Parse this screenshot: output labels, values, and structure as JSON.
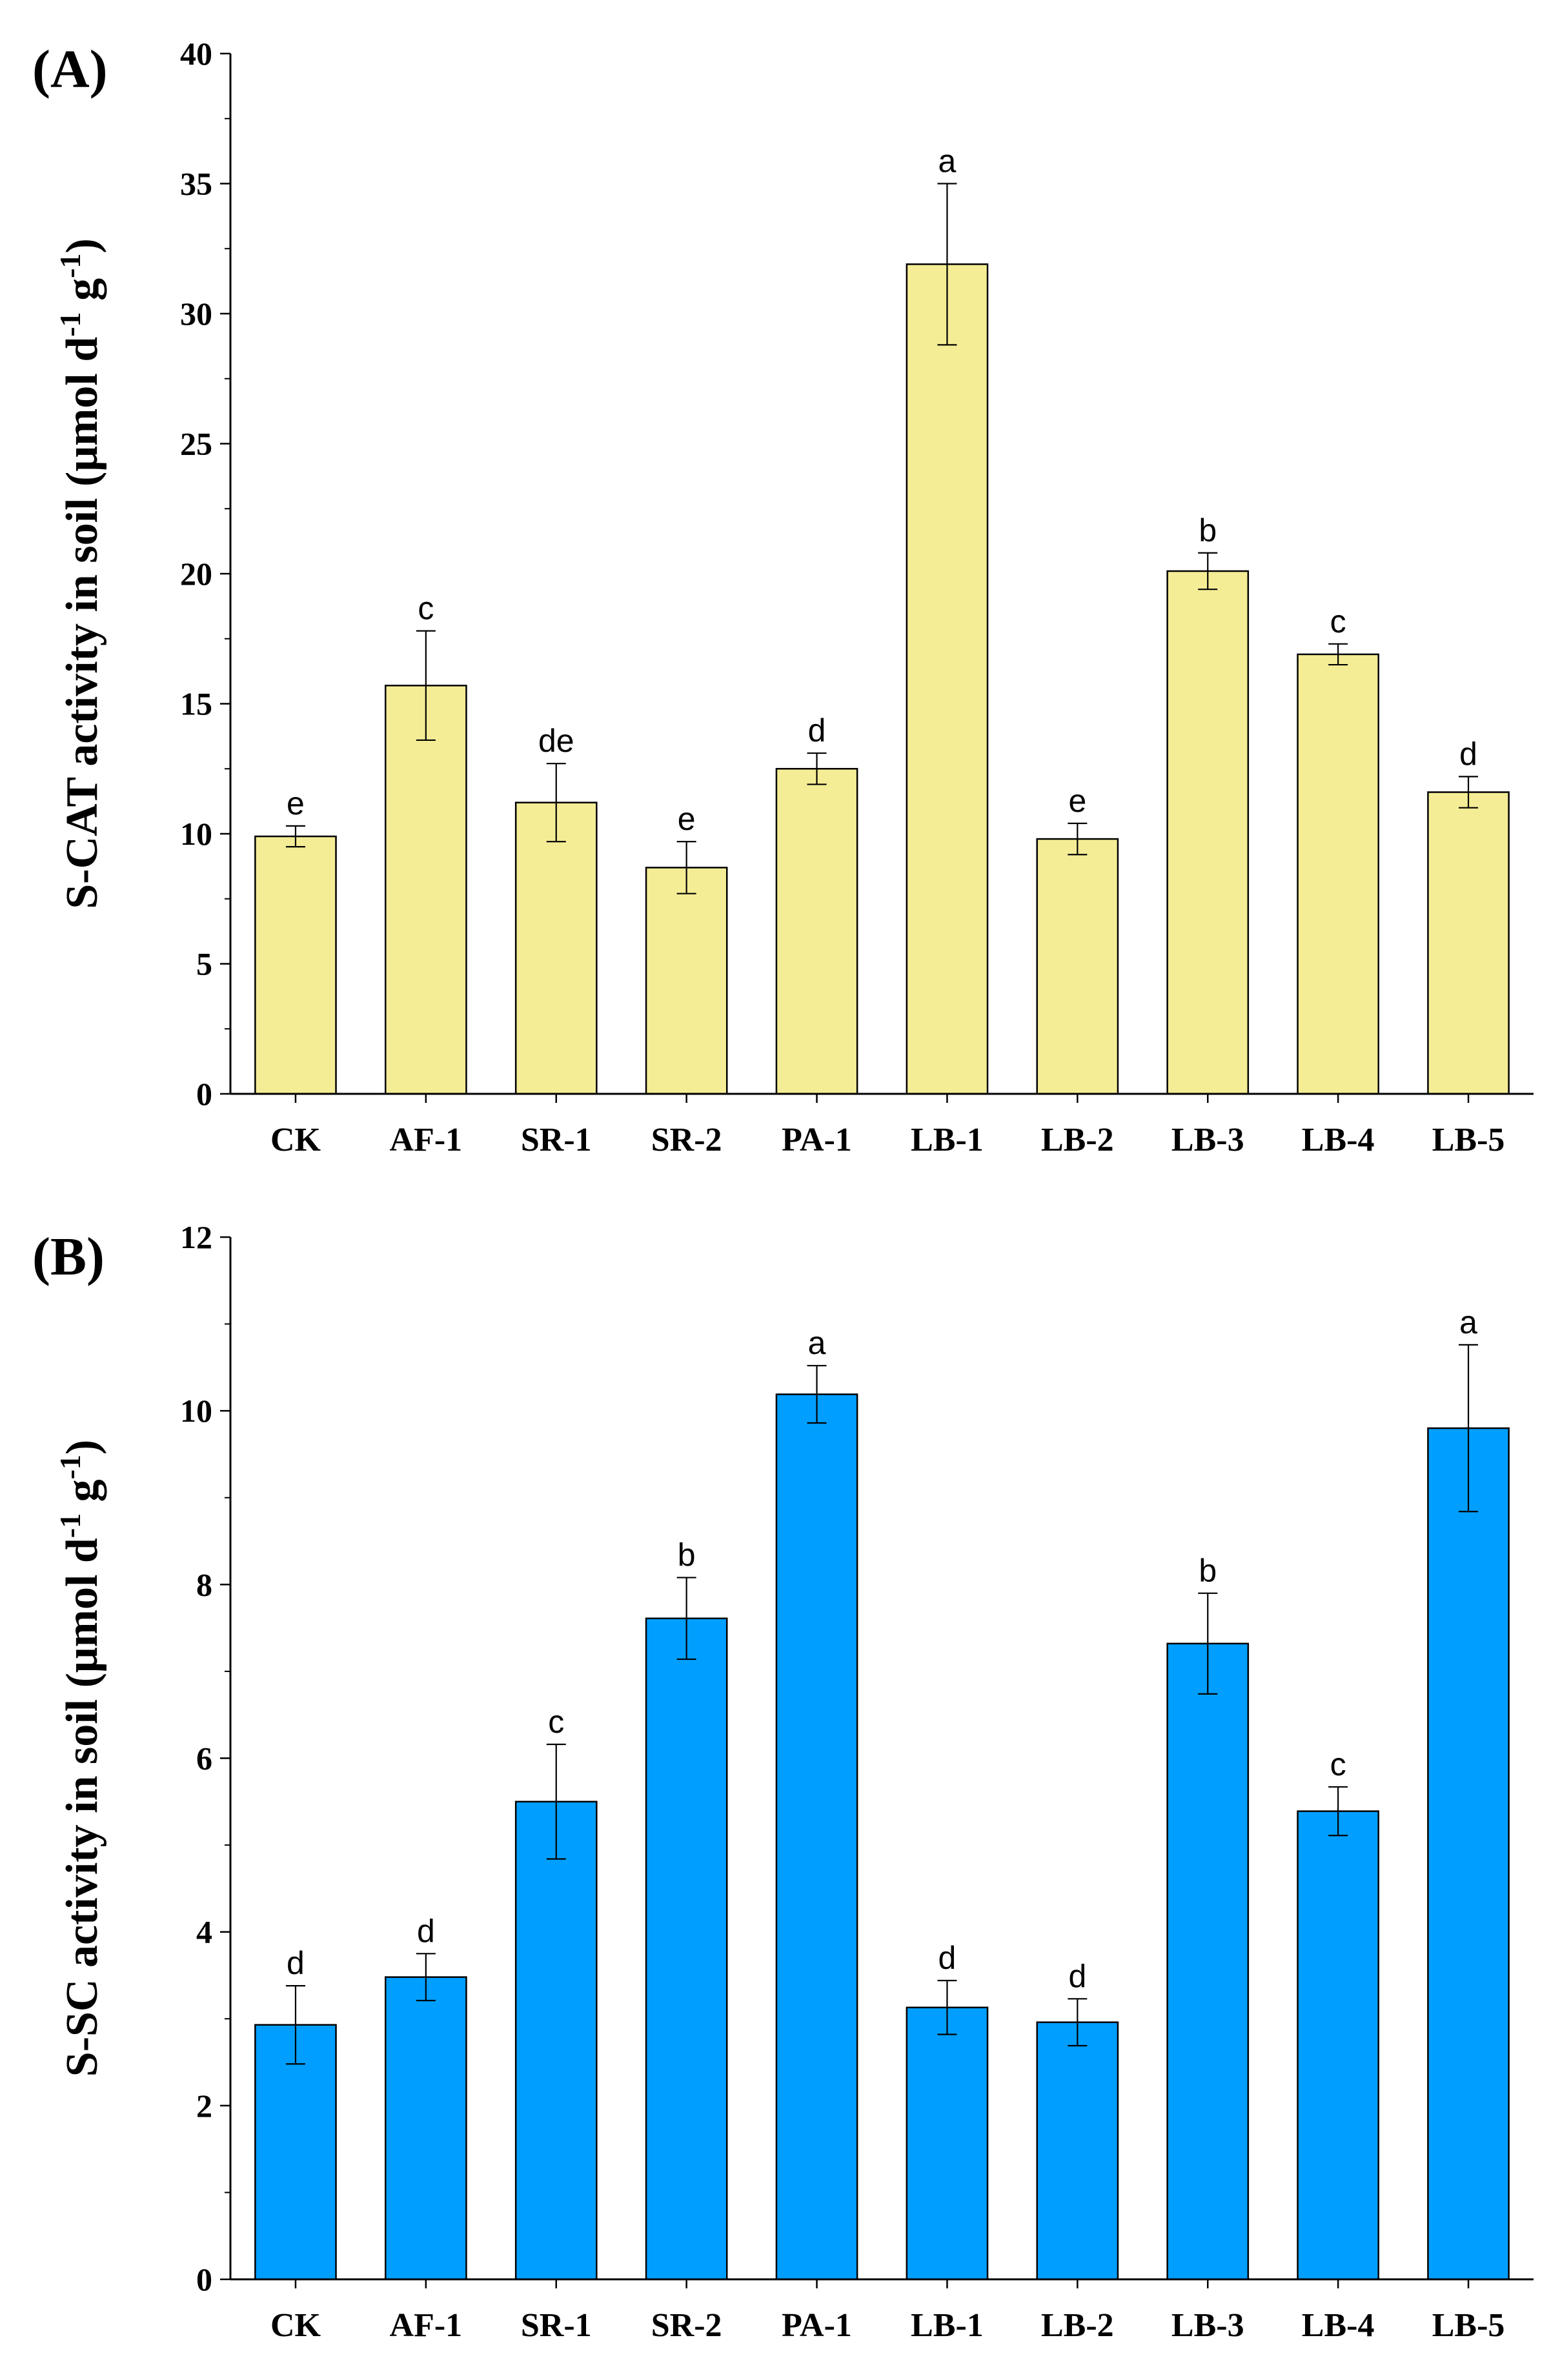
{
  "chart_data": [
    {
      "panel": "(A)",
      "type": "bar",
      "ylabel": {
        "main": "S-CAT activity in soil (μmol d",
        "sup1": "-1",
        "mid": " g",
        "sup2": "-1",
        "end": ")"
      },
      "categories": [
        "CK",
        "AF-1",
        "SR-1",
        "SR-2",
        "PA-1",
        "LB-1",
        "LB-2",
        "LB-3",
        "LB-4",
        "LB-5"
      ],
      "values": [
        9.9,
        15.7,
        11.2,
        8.7,
        12.5,
        31.9,
        9.8,
        20.1,
        16.9,
        11.6
      ],
      "errors": [
        0.4,
        2.1,
        1.5,
        1.0,
        0.6,
        3.1,
        0.6,
        0.7,
        0.4,
        0.6
      ],
      "letters": [
        "e",
        "c",
        "de",
        "e",
        "d",
        "a",
        "e",
        "b",
        "c",
        "d"
      ],
      "ylim": [
        0,
        40
      ],
      "yticks": [
        0,
        5,
        10,
        15,
        20,
        25,
        30,
        35,
        40
      ],
      "color": "#f5ed96"
    },
    {
      "panel": "(B)",
      "type": "bar",
      "ylabel": {
        "main": "S-SC activity in soil (μmol d",
        "sup1": "-1",
        "mid": " g",
        "sup2": "-1",
        "end": ")"
      },
      "categories": [
        "CK",
        "AF-1",
        "SR-1",
        "SR-2",
        "PA-1",
        "LB-1",
        "LB-2",
        "LB-3",
        "LB-4",
        "LB-5"
      ],
      "values": [
        2.93,
        3.48,
        5.5,
        7.61,
        10.19,
        3.13,
        2.96,
        7.32,
        5.39,
        9.8
      ],
      "errors": [
        0.45,
        0.27,
        0.66,
        0.47,
        0.33,
        0.31,
        0.27,
        0.58,
        0.28,
        0.96
      ],
      "letters": [
        "d",
        "d",
        "c",
        "b",
        "a",
        "d",
        "d",
        "b",
        "c",
        "a"
      ],
      "ylim": [
        0,
        12
      ],
      "yticks": [
        0,
        2,
        4,
        6,
        8,
        10,
        12
      ],
      "color": "#009fff"
    }
  ]
}
